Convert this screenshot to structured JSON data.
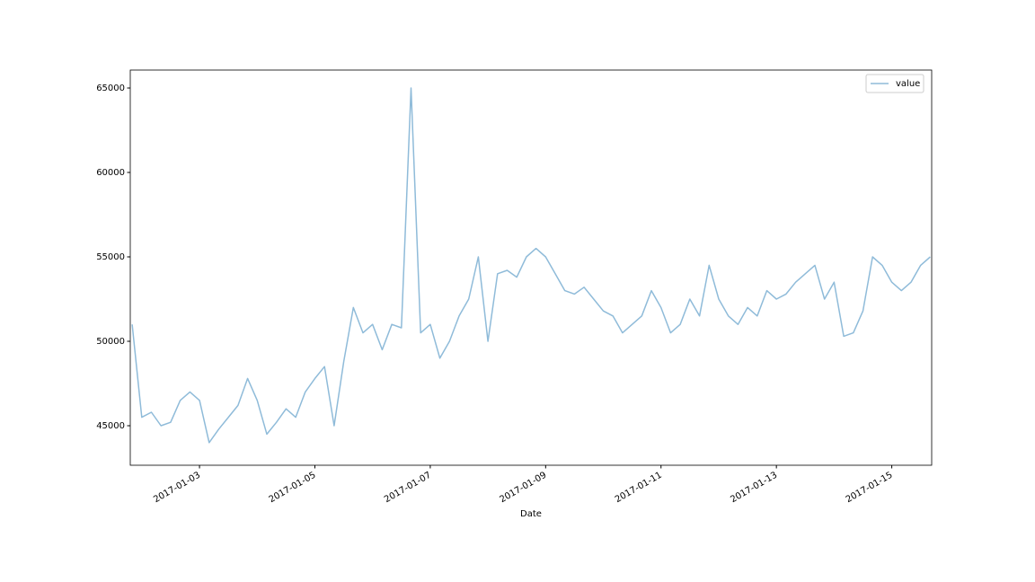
{
  "chart_data": {
    "type": "line",
    "xlabel": "Date",
    "x": [
      "2017-01-01 20:00",
      "2017-01-02 00:00",
      "2017-01-02 04:00",
      "2017-01-02 08:00",
      "2017-01-02 12:00",
      "2017-01-02 16:00",
      "2017-01-02 20:00",
      "2017-01-03 00:00",
      "2017-01-03 04:00",
      "2017-01-03 08:00",
      "2017-01-03 12:00",
      "2017-01-03 16:00",
      "2017-01-03 20:00",
      "2017-01-04 00:00",
      "2017-01-04 04:00",
      "2017-01-04 08:00",
      "2017-01-04 12:00",
      "2017-01-04 16:00",
      "2017-01-04 20:00",
      "2017-01-05 00:00",
      "2017-01-05 04:00",
      "2017-01-05 08:00",
      "2017-01-05 12:00",
      "2017-01-05 16:00",
      "2017-01-05 20:00",
      "2017-01-06 00:00",
      "2017-01-06 04:00",
      "2017-01-06 08:00",
      "2017-01-06 12:00",
      "2017-01-06 16:00",
      "2017-01-06 20:00",
      "2017-01-07 00:00",
      "2017-01-07 04:00",
      "2017-01-07 08:00",
      "2017-01-07 12:00",
      "2017-01-07 16:00",
      "2017-01-07 20:00",
      "2017-01-08 00:00",
      "2017-01-08 04:00",
      "2017-01-08 08:00",
      "2017-01-08 12:00",
      "2017-01-08 16:00",
      "2017-01-08 20:00",
      "2017-01-09 00:00",
      "2017-01-09 04:00",
      "2017-01-09 08:00",
      "2017-01-09 12:00",
      "2017-01-09 16:00",
      "2017-01-09 20:00",
      "2017-01-10 00:00",
      "2017-01-10 04:00",
      "2017-01-10 08:00",
      "2017-01-10 12:00",
      "2017-01-10 16:00",
      "2017-01-10 20:00",
      "2017-01-11 00:00",
      "2017-01-11 04:00",
      "2017-01-11 08:00",
      "2017-01-11 12:00",
      "2017-01-11 16:00",
      "2017-01-11 20:00",
      "2017-01-12 00:00",
      "2017-01-12 04:00",
      "2017-01-12 08:00",
      "2017-01-12 12:00",
      "2017-01-12 16:00",
      "2017-01-12 20:00",
      "2017-01-13 00:00",
      "2017-01-13 04:00",
      "2017-01-13 08:00",
      "2017-01-13 12:00",
      "2017-01-13 16:00",
      "2017-01-13 20:00",
      "2017-01-14 00:00",
      "2017-01-14 04:00",
      "2017-01-14 08:00",
      "2017-01-14 12:00",
      "2017-01-14 16:00",
      "2017-01-14 20:00",
      "2017-01-15 00:00",
      "2017-01-15 04:00",
      "2017-01-15 08:00",
      "2017-01-15 12:00",
      "2017-01-15 16:00"
    ],
    "series": [
      {
        "name": "value",
        "color": "#8fbbd9",
        "values": [
          51000,
          45500,
          45800,
          45000,
          45200,
          46500,
          47000,
          46500,
          44000,
          44800,
          45500,
          46200,
          47800,
          46500,
          44500,
          45200,
          46000,
          45500,
          47000,
          47800,
          48500,
          45000,
          48800,
          52000,
          50500,
          51000,
          49500,
          51000,
          50800,
          65000,
          50500,
          51000,
          49000,
          50000,
          51500,
          52500,
          55000,
          50000,
          54000,
          54200,
          53800,
          55000,
          55500,
          55000,
          54000,
          53000,
          52800,
          53200,
          52500,
          51800,
          51500,
          50500,
          51000,
          51500,
          53000,
          52000,
          50500,
          51000,
          52500,
          51500,
          54500,
          52500,
          51500,
          51000,
          52000,
          51500,
          53000,
          52500,
          52800,
          53500,
          54000,
          54500,
          52500,
          53500,
          50300,
          50500,
          51800,
          55000,
          54500,
          53500,
          53000,
          53500,
          54500,
          55000
        ]
      }
    ],
    "xlim": [
      "2017-01-01 19:12",
      "2017-01-15 16:36"
    ],
    "xticks": [
      "2017-01-03",
      "2017-01-05",
      "2017-01-07",
      "2017-01-09",
      "2017-01-11",
      "2017-01-13",
      "2017-01-15"
    ],
    "ylim": [
      42660,
      66064
    ],
    "yticks": [
      45000,
      50000,
      55000,
      60000,
      65000
    ],
    "legend": "upper right"
  }
}
